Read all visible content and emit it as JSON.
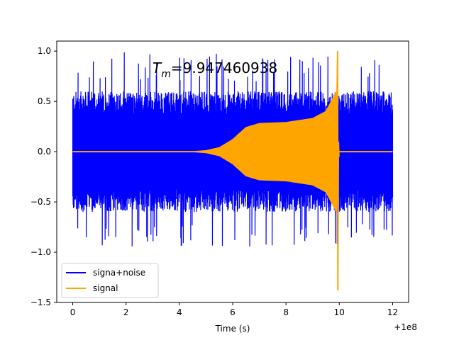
{
  "chart_data": {
    "type": "line",
    "title": "",
    "xlabel": "Time (s)",
    "ylabel": "",
    "x_offset_label": "+1e8",
    "xlim": [
      -0.6,
      12.6
    ],
    "ylim": [
      -1.5,
      1.1
    ],
    "x_ticks": [
      0,
      2,
      4,
      6,
      8,
      10,
      12
    ],
    "x_tick_labels": [
      "0",
      "2",
      "4",
      "6",
      "8",
      "10",
      "12"
    ],
    "y_ticks": [
      -1.5,
      -1.0,
      -0.5,
      0.0,
      0.5,
      1.0
    ],
    "y_tick_labels": [
      "−1.5",
      "−1.0",
      "−0.5",
      "0.0",
      "0.5",
      "1.0"
    ],
    "grid": false,
    "legend_position": "lower-left",
    "annotation": {
      "text_main": "T",
      "text_sub": "m",
      "text_value": "=9.947460938"
    },
    "series": [
      {
        "name": "signa+noise",
        "color": "#0000ff",
        "x_range": [
          0,
          12
        ],
        "noise_envelope": {
          "typical": 0.5,
          "peak_high": 1.0,
          "peak_low": -1.0
        }
      },
      {
        "name": "signal",
        "color": "#ffa500",
        "x_range": [
          0,
          12
        ],
        "envelope": {
          "x": [
            0,
            4.5,
            5.0,
            5.5,
            6.0,
            6.5,
            7.0,
            8.0,
            9.0,
            9.5,
            9.9,
            9.95,
            10.0,
            12.0
          ],
          "amp": [
            0,
            0,
            0.01,
            0.04,
            0.12,
            0.24,
            0.28,
            0.29,
            0.33,
            0.4,
            0.6,
            0.0,
            0.0,
            0.0
          ]
        },
        "max": 1.0,
        "min": -1.38,
        "spike_x": 9.947
      }
    ]
  }
}
